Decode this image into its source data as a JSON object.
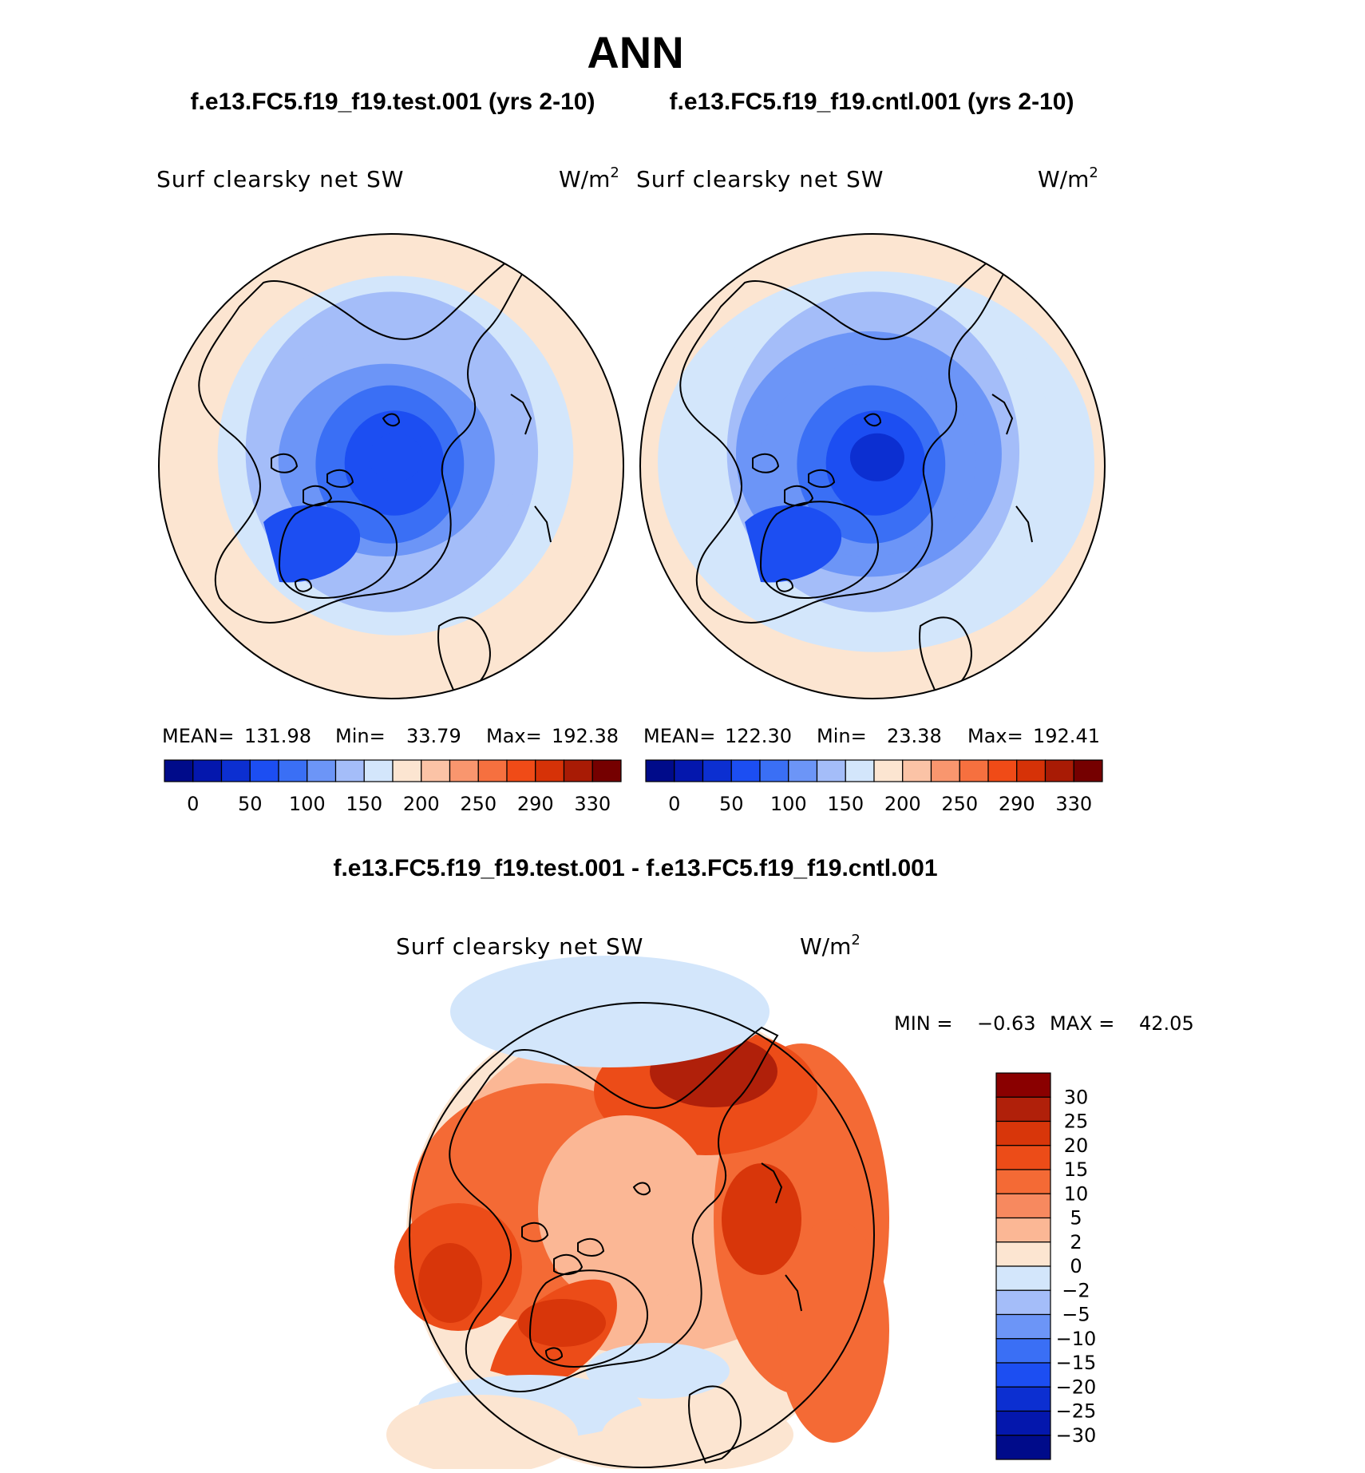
{
  "page": {
    "title": "ANN",
    "test_case_header": "f.e13.FC5.f19_f19.test.001 (yrs 2-10)",
    "cntl_case_header": "f.e13.FC5.f19_f19.cntl.001 (yrs 2-10)",
    "diff_header": "f.e13.FC5.f19_f19.test.001 - f.e13.FC5.f19_f19.cntl.001"
  },
  "colors": {
    "abs_scale": [
      "#000b8a",
      "#0417ad",
      "#0c2fd1",
      "#1c4ef2",
      "#3a6ff5",
      "#6c95f7",
      "#a4bdf9",
      "#d3e6fb",
      "#fce5d1",
      "#fbc3a6",
      "#f9966e",
      "#f6703f",
      "#f04b17",
      "#d63207",
      "#a81b05",
      "#750000"
    ],
    "diff_scale": [
      "#000b8a",
      "#0417ad",
      "#0c2fd1",
      "#1c4ef2",
      "#3a6ff5",
      "#6c95f7",
      "#a4bdf9",
      "#d3e6fb",
      "#fce5d1",
      "#fbb795",
      "#f7895f",
      "#f46a35",
      "#ec4c18",
      "#d8360a",
      "#b0200a",
      "#8a0000"
    ],
    "coast": "#000000"
  },
  "chart_data": [
    {
      "type": "heatmap",
      "panel": "test",
      "projection": "north-polar-stereographic",
      "title": "Surf clearsky net SW",
      "units": "W/m",
      "units_sup": "2",
      "stats": [
        {
          "label": "MEAN=",
          "value": "131.98"
        },
        {
          "label": "Min=",
          "value": "33.79"
        },
        {
          "label": "Max=",
          "value": "192.38"
        }
      ],
      "colorbar": {
        "orientation": "horizontal",
        "tick_labels": [
          "0",
          "50",
          "100",
          "150",
          "200",
          "250",
          "290",
          "330"
        ]
      },
      "field": {
        "pole_value": 40,
        "edge_value": 195,
        "land_value": 60
      }
    },
    {
      "type": "heatmap",
      "panel": "cntl",
      "projection": "north-polar-stereographic",
      "title": "Surf clearsky net SW",
      "units": "W/m",
      "units_sup": "2",
      "stats": [
        {
          "label": "MEAN=",
          "value": "122.30"
        },
        {
          "label": "Min=",
          "value": "23.38"
        },
        {
          "label": "Max=",
          "value": "192.41"
        }
      ],
      "colorbar": {
        "orientation": "horizontal",
        "tick_labels": [
          "0",
          "50",
          "100",
          "150",
          "200",
          "250",
          "290",
          "330"
        ]
      },
      "field": {
        "pole_value": 28,
        "edge_value": 192,
        "land_value": 50
      }
    },
    {
      "type": "heatmap",
      "panel": "difference",
      "projection": "north-polar-stereographic",
      "title": "Surf clearsky net SW",
      "units": "W/m",
      "units_sup": "2",
      "minmax": {
        "min_label": "MIN =",
        "min": "−0.63",
        "max_label": "MAX =",
        "max": "42.05"
      },
      "colorbar": {
        "orientation": "vertical",
        "tick_labels": [
          "30",
          "25",
          "20",
          "15",
          "10",
          "5",
          "2",
          "0",
          "−2",
          "−5",
          "−10",
          "−15",
          "−20",
          "−25",
          "−30"
        ]
      }
    }
  ]
}
